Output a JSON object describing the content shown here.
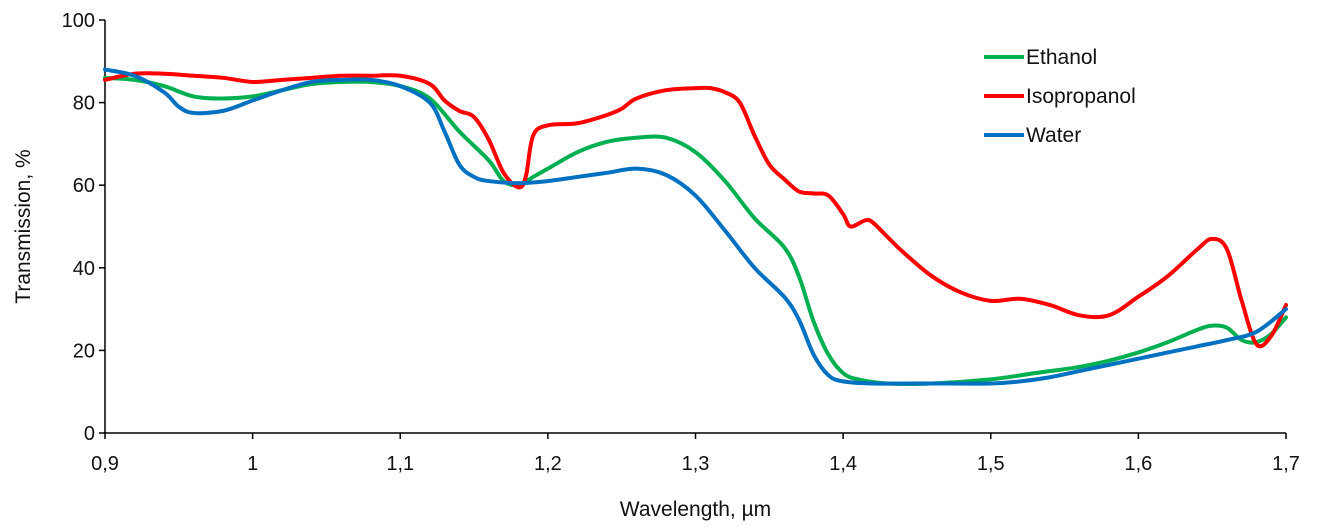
{
  "chart_data": {
    "type": "line",
    "title": "",
    "xlabel": "Wavelength, µm",
    "ylabel": "Transmission, %",
    "xlim": [
      0.9,
      1.7
    ],
    "ylim": [
      0,
      100
    ],
    "x_ticks": [
      0.9,
      1.0,
      1.1,
      1.2,
      1.3,
      1.4,
      1.5,
      1.6,
      1.7
    ],
    "x_tick_labels": [
      "0,9",
      "1",
      "1,1",
      "1,2",
      "1,3",
      "1,4",
      "1,5",
      "1,6",
      "1,7"
    ],
    "y_ticks": [
      0,
      20,
      40,
      60,
      80,
      100
    ],
    "y_tick_labels": [
      "0",
      "20",
      "40",
      "60",
      "80",
      "100"
    ],
    "grid": false,
    "legend_position": "top-right",
    "series": [
      {
        "name": "Ethanol",
        "color": "#00b050",
        "points": [
          [
            0.9,
            86
          ],
          [
            0.92,
            85.5
          ],
          [
            0.94,
            84
          ],
          [
            0.96,
            81.5
          ],
          [
            0.98,
            81
          ],
          [
            1.0,
            81.5
          ],
          [
            1.02,
            83
          ],
          [
            1.04,
            84.5
          ],
          [
            1.06,
            85
          ],
          [
            1.08,
            85
          ],
          [
            1.1,
            84
          ],
          [
            1.12,
            81
          ],
          [
            1.14,
            73
          ],
          [
            1.16,
            66
          ],
          [
            1.17,
            61
          ],
          [
            1.18,
            60
          ],
          [
            1.19,
            62
          ],
          [
            1.2,
            64
          ],
          [
            1.22,
            68
          ],
          [
            1.24,
            70.5
          ],
          [
            1.26,
            71.5
          ],
          [
            1.28,
            71.5
          ],
          [
            1.3,
            68
          ],
          [
            1.32,
            61
          ],
          [
            1.34,
            52
          ],
          [
            1.36,
            45
          ],
          [
            1.37,
            38
          ],
          [
            1.38,
            27
          ],
          [
            1.39,
            19
          ],
          [
            1.4,
            14.5
          ],
          [
            1.41,
            13
          ],
          [
            1.43,
            12
          ],
          [
            1.46,
            12
          ],
          [
            1.5,
            13
          ],
          [
            1.53,
            14.5
          ],
          [
            1.56,
            16
          ],
          [
            1.58,
            17.5
          ],
          [
            1.6,
            19.5
          ],
          [
            1.62,
            22
          ],
          [
            1.64,
            25
          ],
          [
            1.65,
            26
          ],
          [
            1.66,
            25.5
          ],
          [
            1.67,
            22.5
          ],
          [
            1.68,
            22
          ],
          [
            1.69,
            24
          ],
          [
            1.7,
            28
          ]
        ]
      },
      {
        "name": "Isopropanol",
        "color": "#ff0000",
        "points": [
          [
            0.9,
            85.5
          ],
          [
            0.92,
            87
          ],
          [
            0.94,
            87
          ],
          [
            0.96,
            86.5
          ],
          [
            0.98,
            86
          ],
          [
            1.0,
            85
          ],
          [
            1.02,
            85.5
          ],
          [
            1.04,
            86
          ],
          [
            1.06,
            86.5
          ],
          [
            1.08,
            86.5
          ],
          [
            1.1,
            86.5
          ],
          [
            1.12,
            84.5
          ],
          [
            1.13,
            80.5
          ],
          [
            1.14,
            78
          ],
          [
            1.15,
            76.5
          ],
          [
            1.16,
            71
          ],
          [
            1.17,
            63
          ],
          [
            1.18,
            59.5
          ],
          [
            1.185,
            62
          ],
          [
            1.19,
            72
          ],
          [
            1.2,
            74.5
          ],
          [
            1.22,
            75
          ],
          [
            1.24,
            77
          ],
          [
            1.25,
            78.5
          ],
          [
            1.26,
            81
          ],
          [
            1.28,
            83
          ],
          [
            1.3,
            83.5
          ],
          [
            1.31,
            83.5
          ],
          [
            1.32,
            82.5
          ],
          [
            1.33,
            80
          ],
          [
            1.34,
            72
          ],
          [
            1.35,
            65
          ],
          [
            1.36,
            61.5
          ],
          [
            1.37,
            58.5
          ],
          [
            1.38,
            58
          ],
          [
            1.39,
            57.5
          ],
          [
            1.4,
            53
          ],
          [
            1.405,
            50
          ],
          [
            1.415,
            51.5
          ],
          [
            1.42,
            51
          ],
          [
            1.43,
            47.5
          ],
          [
            1.44,
            44
          ],
          [
            1.46,
            38
          ],
          [
            1.48,
            34
          ],
          [
            1.5,
            32
          ],
          [
            1.52,
            32.5
          ],
          [
            1.54,
            31
          ],
          [
            1.56,
            28.5
          ],
          [
            1.58,
            28.5
          ],
          [
            1.6,
            33
          ],
          [
            1.62,
            38
          ],
          [
            1.64,
            44.5
          ],
          [
            1.65,
            47
          ],
          [
            1.66,
            44.5
          ],
          [
            1.67,
            32
          ],
          [
            1.68,
            21.5
          ],
          [
            1.69,
            23.5
          ],
          [
            1.7,
            31
          ]
        ]
      },
      {
        "name": "Water",
        "color": "#0070c0",
        "points": [
          [
            0.9,
            88
          ],
          [
            0.92,
            86.5
          ],
          [
            0.94,
            82.5
          ],
          [
            0.95,
            79
          ],
          [
            0.96,
            77.5
          ],
          [
            0.98,
            78
          ],
          [
            1.0,
            80.5
          ],
          [
            1.02,
            83
          ],
          [
            1.04,
            85
          ],
          [
            1.06,
            85.5
          ],
          [
            1.08,
            85.5
          ],
          [
            1.1,
            84
          ],
          [
            1.12,
            80
          ],
          [
            1.13,
            73
          ],
          [
            1.14,
            65
          ],
          [
            1.15,
            62
          ],
          [
            1.16,
            61
          ],
          [
            1.18,
            60.5
          ],
          [
            1.2,
            61
          ],
          [
            1.22,
            62
          ],
          [
            1.24,
            63
          ],
          [
            1.26,
            64
          ],
          [
            1.28,
            62.5
          ],
          [
            1.3,
            57.5
          ],
          [
            1.32,
            49
          ],
          [
            1.34,
            40
          ],
          [
            1.36,
            33
          ],
          [
            1.37,
            27.5
          ],
          [
            1.38,
            19
          ],
          [
            1.39,
            14
          ],
          [
            1.4,
            12.5
          ],
          [
            1.42,
            12
          ],
          [
            1.46,
            12
          ],
          [
            1.5,
            12
          ],
          [
            1.52,
            12.5
          ],
          [
            1.54,
            13.5
          ],
          [
            1.56,
            15
          ],
          [
            1.58,
            16.5
          ],
          [
            1.6,
            18
          ],
          [
            1.62,
            19.5
          ],
          [
            1.64,
            21
          ],
          [
            1.66,
            22.5
          ],
          [
            1.68,
            24.5
          ],
          [
            1.7,
            30
          ]
        ]
      }
    ]
  }
}
